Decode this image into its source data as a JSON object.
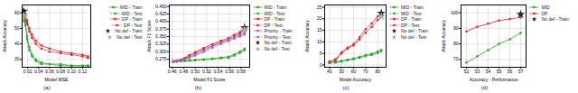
{
  "chart_data": [
    {
      "type": "line",
      "title": "(a)",
      "xlabel": "Model MSE",
      "ylabel": "Attack Accuracy",
      "xlim": [
        0.01,
        0.135
      ],
      "ylim": [
        25,
        65
      ],
      "xticks": [
        0.02,
        0.04,
        0.06,
        0.08,
        {
          "value": 0.1,
          "label": "0.10"
        },
        0.12
      ],
      "yticks": [
        30,
        40,
        50,
        60
      ],
      "grid": true,
      "legend": "upper right",
      "series": [
        {
          "name": "MID - Train",
          "color": "#2ca02c",
          "line_style": "solid",
          "marker": "square",
          "x": [
            0.013,
            0.016,
            0.019,
            0.023,
            0.028,
            0.035,
            0.045,
            0.06,
            0.08,
            0.1,
            0.12,
            0.13
          ],
          "values": [
            57,
            54,
            45,
            38,
            33,
            30,
            28,
            27,
            27,
            26,
            26,
            26
          ]
        },
        {
          "name": "MID - Test",
          "color": "#2ca02c",
          "line_style": "dashed",
          "marker": "square",
          "x": [
            0.013,
            0.016,
            0.019,
            0.023,
            0.028,
            0.035,
            0.045,
            0.06,
            0.08,
            0.1,
            0.12,
            0.13
          ],
          "values": [
            55,
            52,
            43,
            36,
            32,
            29,
            27,
            27,
            26,
            26,
            26,
            26
          ]
        },
        {
          "name": "DP - Train",
          "color": "#d62728",
          "line_style": "solid",
          "marker": "square",
          "x": [
            0.013,
            0.016,
            0.019,
            0.023,
            0.028,
            0.035,
            0.045,
            0.06,
            0.08,
            0.1,
            0.12,
            0.13
          ],
          "values": [
            60,
            58,
            55,
            50,
            46,
            42,
            39,
            37,
            35,
            34,
            33,
            32
          ]
        },
        {
          "name": "DP - Test",
          "color": "#d62728",
          "line_style": "dashed",
          "marker": "square",
          "x": [
            0.013,
            0.016,
            0.019,
            0.023,
            0.028,
            0.035,
            0.045,
            0.06,
            0.08,
            0.1,
            0.12,
            0.13
          ],
          "values": [
            58,
            56,
            53,
            48,
            44,
            40,
            37,
            35,
            34,
            33,
            32,
            31
          ]
        },
        {
          "name": "No def - Train",
          "type": "scatter",
          "color": "#222222",
          "marker": "star",
          "x": [
            0.013
          ],
          "values": [
            61
          ]
        },
        {
          "name": "No def - Test",
          "type": "scatter",
          "color": "#aaaaaa",
          "marker": "star",
          "x": [
            0.013
          ],
          "values": [
            58
          ]
        }
      ]
    },
    {
      "type": "line",
      "title": "(b)",
      "xlabel": "Model F1 Score",
      "ylabel": "Attack F1 Score",
      "xlim": [
        0.455,
        0.595
      ],
      "ylim": [
        0.248,
        0.455
      ],
      "xticks": [
        0.46,
        0.48,
        {
          "value": 0.5,
          "label": "0.50"
        },
        0.52,
        0.54,
        0.56,
        0.58
      ],
      "yticks": [
        0.275,
        {
          "value": 0.3,
          "label": "0.300"
        },
        0.325,
        {
          "value": 0.35,
          "label": "0.350"
        },
        0.375,
        {
          "value": 0.4,
          "label": "0.400"
        },
        0.425,
        {
          "value": 0.45,
          "label": "0.450"
        }
      ],
      "grid": true,
      "legend": "upper left",
      "series": [
        {
          "name": "MID - Train",
          "color": "#2ca02c",
          "line_style": "solid",
          "marker": "square",
          "x": [
            0.462,
            0.468,
            0.475,
            0.482,
            0.49,
            0.5,
            0.515,
            0.53,
            0.545,
            0.558,
            0.568,
            0.578,
            0.586
          ],
          "values": [
            0.268,
            0.268,
            0.269,
            0.27,
            0.271,
            0.272,
            0.274,
            0.277,
            0.28,
            0.283,
            0.29,
            0.3,
            0.31
          ]
        },
        {
          "name": "MID - Test",
          "color": "#2ca02c",
          "line_style": "dashed",
          "marker": "square",
          "x": [
            0.462,
            0.468,
            0.475,
            0.482,
            0.49,
            0.5,
            0.515,
            0.53,
            0.545,
            0.558,
            0.568,
            0.578,
            0.586
          ],
          "values": [
            0.267,
            0.267,
            0.268,
            0.269,
            0.27,
            0.271,
            0.273,
            0.275,
            0.278,
            0.28,
            0.287,
            0.296,
            0.305
          ]
        },
        {
          "name": "DP - Train",
          "color": "#d62728",
          "line_style": "solid",
          "marker": "square",
          "x": [
            0.462,
            0.468,
            0.475,
            0.482,
            0.49,
            0.5,
            0.515,
            0.53,
            0.545,
            0.558,
            0.568,
            0.578,
            0.586
          ],
          "values": [
            0.268,
            0.27,
            0.274,
            0.279,
            0.288,
            0.298,
            0.312,
            0.325,
            0.336,
            0.345,
            0.356,
            0.365,
            0.378
          ]
        },
        {
          "name": "DP - Test",
          "color": "#d62728",
          "line_style": "dashed",
          "marker": "square",
          "x": [
            0.462,
            0.468,
            0.475,
            0.482,
            0.49,
            0.5,
            0.515,
            0.53,
            0.545,
            0.558,
            0.568,
            0.578,
            0.586
          ],
          "values": [
            0.266,
            0.268,
            0.272,
            0.277,
            0.285,
            0.295,
            0.308,
            0.32,
            0.332,
            0.34,
            0.351,
            0.36,
            0.373
          ]
        },
        {
          "name": "Priority - Train",
          "color": "#9467bd",
          "line_style": "solid",
          "marker": "square",
          "x": [
            0.462,
            0.468,
            0.475,
            0.482,
            0.49,
            0.5,
            0.515,
            0.53,
            0.545,
            0.558,
            0.568,
            0.578,
            0.586
          ],
          "values": [
            0.267,
            0.269,
            0.272,
            0.276,
            0.282,
            0.29,
            0.303,
            0.318,
            0.33,
            0.34,
            0.348,
            0.355,
            0.362
          ]
        },
        {
          "name": "Priority - Test",
          "color": "#9467bd",
          "line_style": "dashed",
          "marker": "square",
          "x": [
            0.462,
            0.468,
            0.475,
            0.482,
            0.49,
            0.5,
            0.515,
            0.53,
            0.545,
            0.558,
            0.568,
            0.578,
            0.586
          ],
          "values": [
            0.265,
            0.267,
            0.27,
            0.274,
            0.28,
            0.287,
            0.299,
            0.313,
            0.325,
            0.335,
            0.343,
            0.35,
            0.357
          ]
        },
        {
          "name": "No def - Train",
          "type": "scatter",
          "color": "#222222",
          "marker": "star",
          "x": [
            0.586
          ],
          "values": [
            0.38
          ]
        },
        {
          "name": "No def - Test",
          "type": "scatter",
          "color": "#aaaaaa",
          "marker": "star",
          "x": [
            0.586
          ],
          "values": [
            0.373
          ]
        }
      ]
    },
    {
      "type": "line",
      "title": "(c)",
      "xlabel": "Model Accuracy",
      "ylabel": "Attack Accuracy",
      "xlim": [
        36,
        87
      ],
      "ylim": [
        -1,
        26
      ],
      "xticks": [
        40,
        50,
        60,
        70,
        80
      ],
      "yticks": [
        0,
        5,
        10,
        15,
        20,
        25
      ],
      "grid": true,
      "legend": "upper left",
      "series": [
        {
          "name": "MID - Train",
          "color": "#2ca02c",
          "line_style": "solid",
          "marker": "square",
          "x": [
            40,
            45,
            50,
            55,
            60,
            65,
            70,
            75,
            80,
            83
          ],
          "values": [
            1.0,
            1.3,
            1.8,
            2.3,
            2.8,
            3.5,
            4.2,
            4.8,
            5.8,
            6.5
          ]
        },
        {
          "name": "MID - Test",
          "color": "#2ca02c",
          "line_style": "dashed",
          "marker": "square",
          "x": [
            40,
            45,
            50,
            55,
            60,
            65,
            70,
            75,
            80,
            83
          ],
          "values": [
            0.8,
            1.0,
            1.5,
            2.0,
            2.5,
            3.1,
            3.8,
            4.3,
            5.2,
            6.0
          ]
        },
        {
          "name": "DP - Train",
          "color": "#d62728",
          "line_style": "solid",
          "marker": "square",
          "x": [
            40,
            45,
            50,
            55,
            60,
            65,
            70,
            75,
            80,
            83
          ],
          "values": [
            1.5,
            2.5,
            5.5,
            7.5,
            9.0,
            12.0,
            15.5,
            18.0,
            21.0,
            22.5
          ]
        },
        {
          "name": "DP - Test",
          "color": "#d62728",
          "line_style": "dashed",
          "marker": "square",
          "x": [
            40,
            45,
            50,
            55,
            60,
            65,
            70,
            75,
            80,
            83
          ],
          "values": [
            1.2,
            2.0,
            5.0,
            7.0,
            8.5,
            11.0,
            14.0,
            16.5,
            19.5,
            21.0
          ]
        },
        {
          "name": "No def - Train",
          "type": "scatter",
          "color": "#222222",
          "marker": "star",
          "x": [
            83
          ],
          "values": [
            22.5
          ]
        },
        {
          "name": "No def - Test",
          "type": "scatter",
          "color": "#aaaaaa",
          "marker": "star",
          "x": [
            83
          ],
          "values": [
            21.0
          ]
        }
      ]
    },
    {
      "type": "line",
      "title": "(d)",
      "xlabel": "Accuracy - Performance",
      "ylabel": "Attack Accuracy",
      "xlim": [
        51.5,
        57.5
      ],
      "ylim": [
        65,
        105
      ],
      "xticks": [
        52,
        53,
        54,
        55,
        56,
        57
      ],
      "yticks": [
        70,
        80,
        90,
        100
      ],
      "grid": true,
      "legend": "upper left",
      "series": [
        {
          "name": "MID",
          "color": "#2ca02c",
          "line_style": "solid",
          "marker": "square",
          "x": [
            52,
            53,
            54,
            55,
            56,
            57
          ],
          "values": [
            68,
            72,
            76,
            80,
            83,
            87
          ]
        },
        {
          "name": "DP",
          "color": "#d62728",
          "line_style": "solid",
          "marker": "square",
          "x": [
            52,
            53,
            54,
            55,
            56,
            57
          ],
          "values": [
            88,
            91,
            93,
            95,
            96,
            97
          ]
        },
        {
          "name": "No def - Train",
          "type": "scatter",
          "color": "#222222",
          "marker": "star",
          "x": [
            57
          ],
          "values": [
            99
          ]
        }
      ]
    }
  ]
}
